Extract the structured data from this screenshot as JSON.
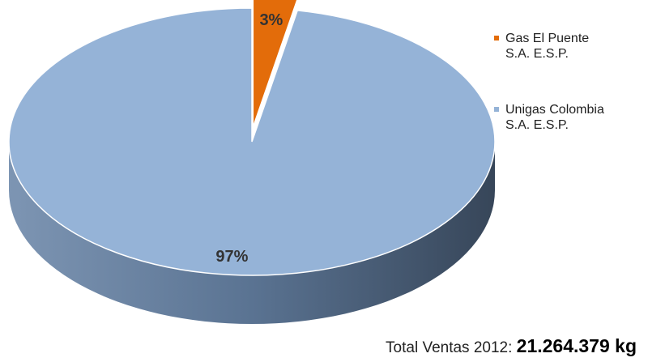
{
  "chart_data": {
    "type": "pie",
    "categories": [
      "Gas El Puente S.A. E.S.P.",
      "Unigas Colombia S.A. E.S.P."
    ],
    "values": [
      3,
      97
    ],
    "value_labels": [
      "3%",
      "97%"
    ],
    "colors": [
      "#e36c0a",
      "#95b3d7"
    ],
    "annotations": [
      "Total Ventas 2012:",
      "21.264.379 kg"
    ]
  }
}
